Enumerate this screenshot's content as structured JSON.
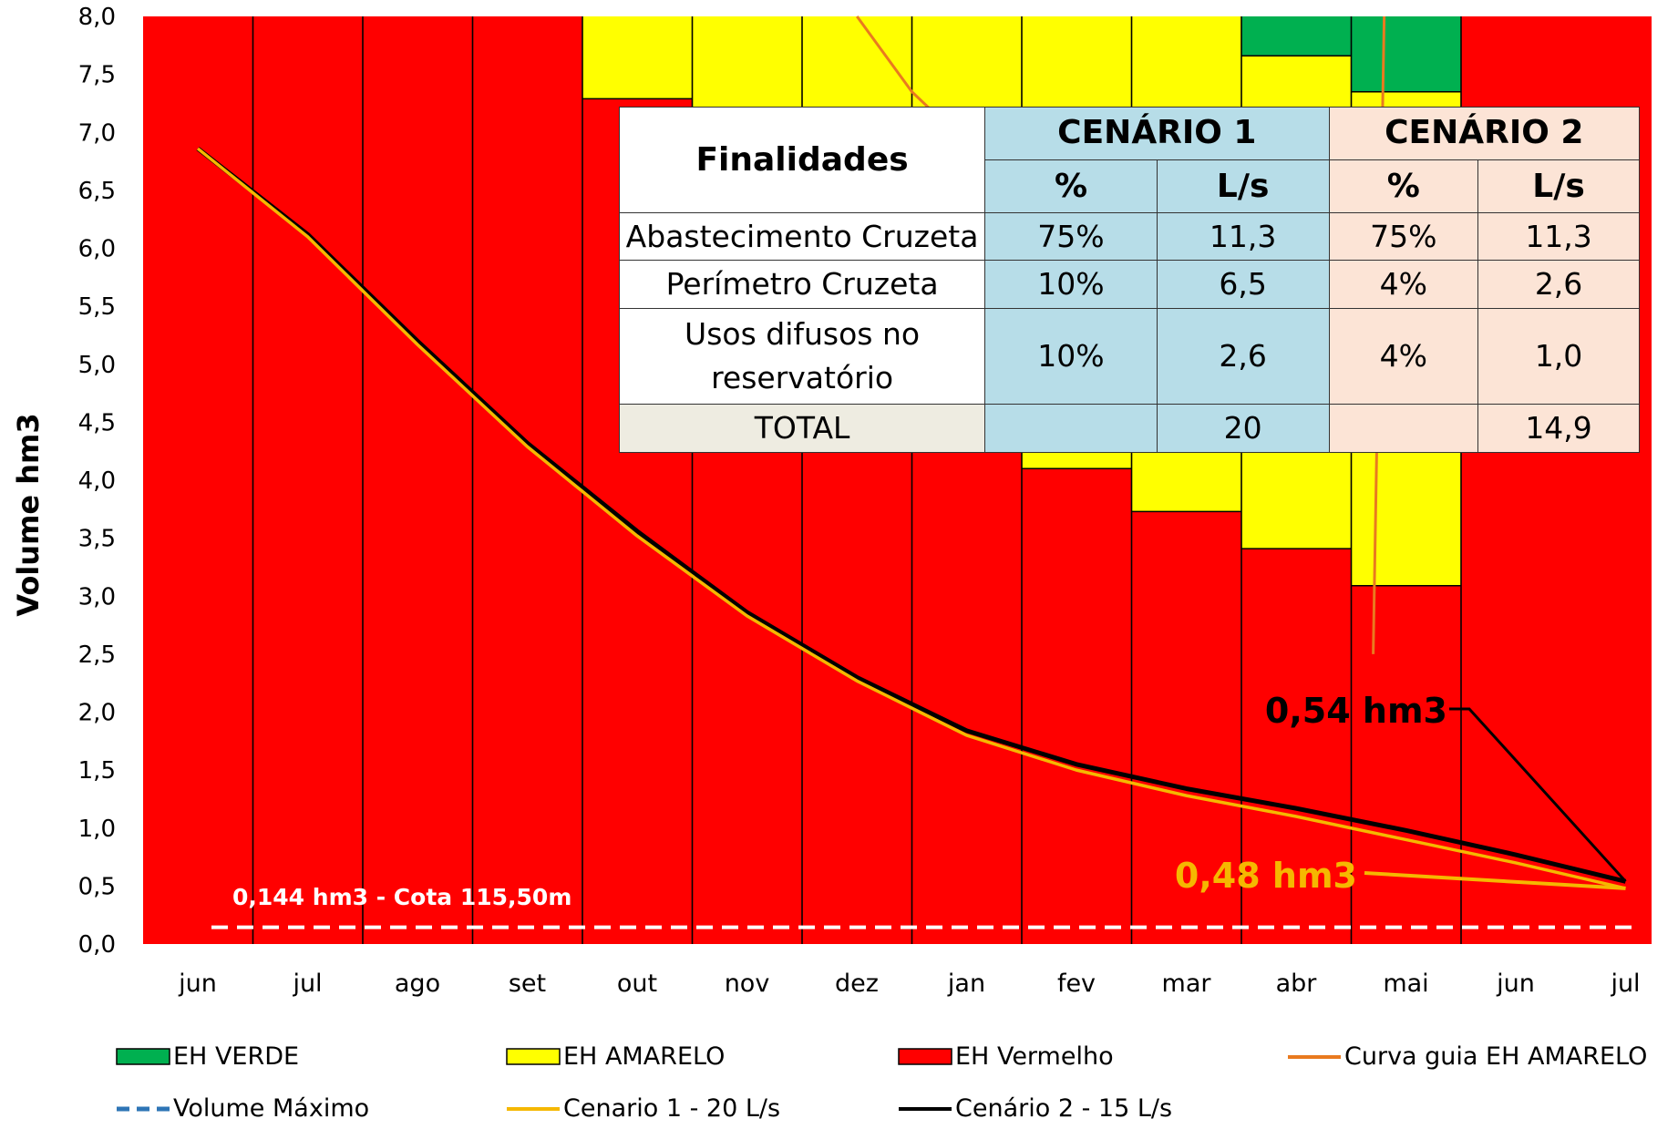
{
  "chart_data": {
    "type": "bar+line",
    "ylabel": "Volume hm3",
    "xlabel": "",
    "ylim": [
      0,
      8
    ],
    "yticks": [
      "0,0",
      "0,5",
      "1,0",
      "1,5",
      "2,0",
      "2,5",
      "3,0",
      "3,5",
      "4,0",
      "4,5",
      "5,0",
      "5,5",
      "6,0",
      "6,5",
      "7,0",
      "7,5",
      "8,0"
    ],
    "categories": [
      "jun",
      "jul",
      "ago",
      "set",
      "out",
      "nov",
      "dez",
      "jan",
      "fev",
      "mar",
      "abr",
      "mai",
      "jun",
      "jul"
    ],
    "zones": {
      "vermelho_top": [
        8.0,
        8.0,
        8.0,
        8.0,
        7.29,
        7.2,
        6.4,
        5.5,
        4.1,
        3.73,
        3.41,
        3.09,
        8.0
      ],
      "amarelo_top": [
        8.0,
        8.0,
        8.0,
        8.0,
        8.0,
        8.0,
        8.0,
        8.0,
        8.0,
        8.0,
        7.66,
        7.35,
        8.0
      ],
      "verde_top": [
        8.0,
        8.0,
        8.0,
        8.0,
        8.0,
        8.0,
        8.0,
        8.0,
        8.0,
        8.0,
        8.0,
        8.0,
        8.0
      ]
    },
    "curva_guia": {
      "x": [
        6.5,
        7.0,
        7.5,
        8.0
      ],
      "y": [
        8.0,
        7.35,
        6.9,
        6.5
      ],
      "x2": [
        11.2,
        11.3
      ],
      "y2": [
        2.5,
        8.0
      ]
    },
    "series": [
      {
        "name": "Cenario 1 - 20 L/s",
        "color": "#f5b800",
        "values": [
          6.86,
          6.1,
          5.17,
          4.29,
          3.52,
          2.83,
          2.27,
          1.8,
          1.5,
          1.28,
          1.1,
          0.9,
          0.7,
          0.48
        ]
      },
      {
        "name": "Cenário 2 - 15 L/s",
        "color": "#000000",
        "values": [
          6.86,
          6.12,
          5.2,
          4.32,
          3.56,
          2.86,
          2.3,
          1.84,
          1.55,
          1.34,
          1.17,
          0.98,
          0.77,
          0.54
        ]
      }
    ],
    "volume_maximo": 0.144,
    "annotations": {
      "cota": "0,144 hm3 - Cota 115,50m",
      "c2_end": "0,54 hm3",
      "c1_end": "0,48 hm3"
    },
    "legend": [
      {
        "label": "EH VERDE",
        "color": "#00b050",
        "kind": "box"
      },
      {
        "label": "EH AMARELO",
        "color": "#ffff00",
        "kind": "box"
      },
      {
        "label": "EH Vermelho",
        "color": "#ff0000",
        "kind": "box"
      },
      {
        "label": "Curva guia EH AMARELO",
        "color": "#e97a1f",
        "kind": "line"
      },
      {
        "label": "Volume Máximo",
        "color": "#2e75b6",
        "kind": "dash"
      },
      {
        "label": "Cenario 1 - 20 L/s",
        "color": "#f5b800",
        "kind": "line"
      },
      {
        "label": "Cenário 2 - 15 L/s",
        "color": "#000000",
        "kind": "line"
      }
    ],
    "colors": {
      "verde": "#00b050",
      "amarelo": "#ffff00",
      "vermelho": "#ff0000",
      "curva": "#e97a1f",
      "volmax_line": "#ffffff"
    }
  },
  "table": {
    "header_finalidades": "Finalidades",
    "cen1": "CENÁRIO 1",
    "cen2": "CENÁRIO 2",
    "pct": "%",
    "ls": "L/s",
    "rows": [
      {
        "name": "Abastecimento Cruzeta",
        "c1p": "75%",
        "c1l": "11,3",
        "c2p": "75%",
        "c2l": "11,3"
      },
      {
        "name": "Perímetro Cruzeta",
        "c1p": "10%",
        "c1l": "6,5",
        "c2p": "4%",
        "c2l": "2,6"
      },
      {
        "name": "Usos difusos no reservatório",
        "c1p": "10%",
        "c1l": "2,6",
        "c2p": "4%",
        "c2l": "1,0"
      }
    ],
    "total_label": "TOTAL",
    "total_c1": "20",
    "total_c2": "14,9"
  }
}
